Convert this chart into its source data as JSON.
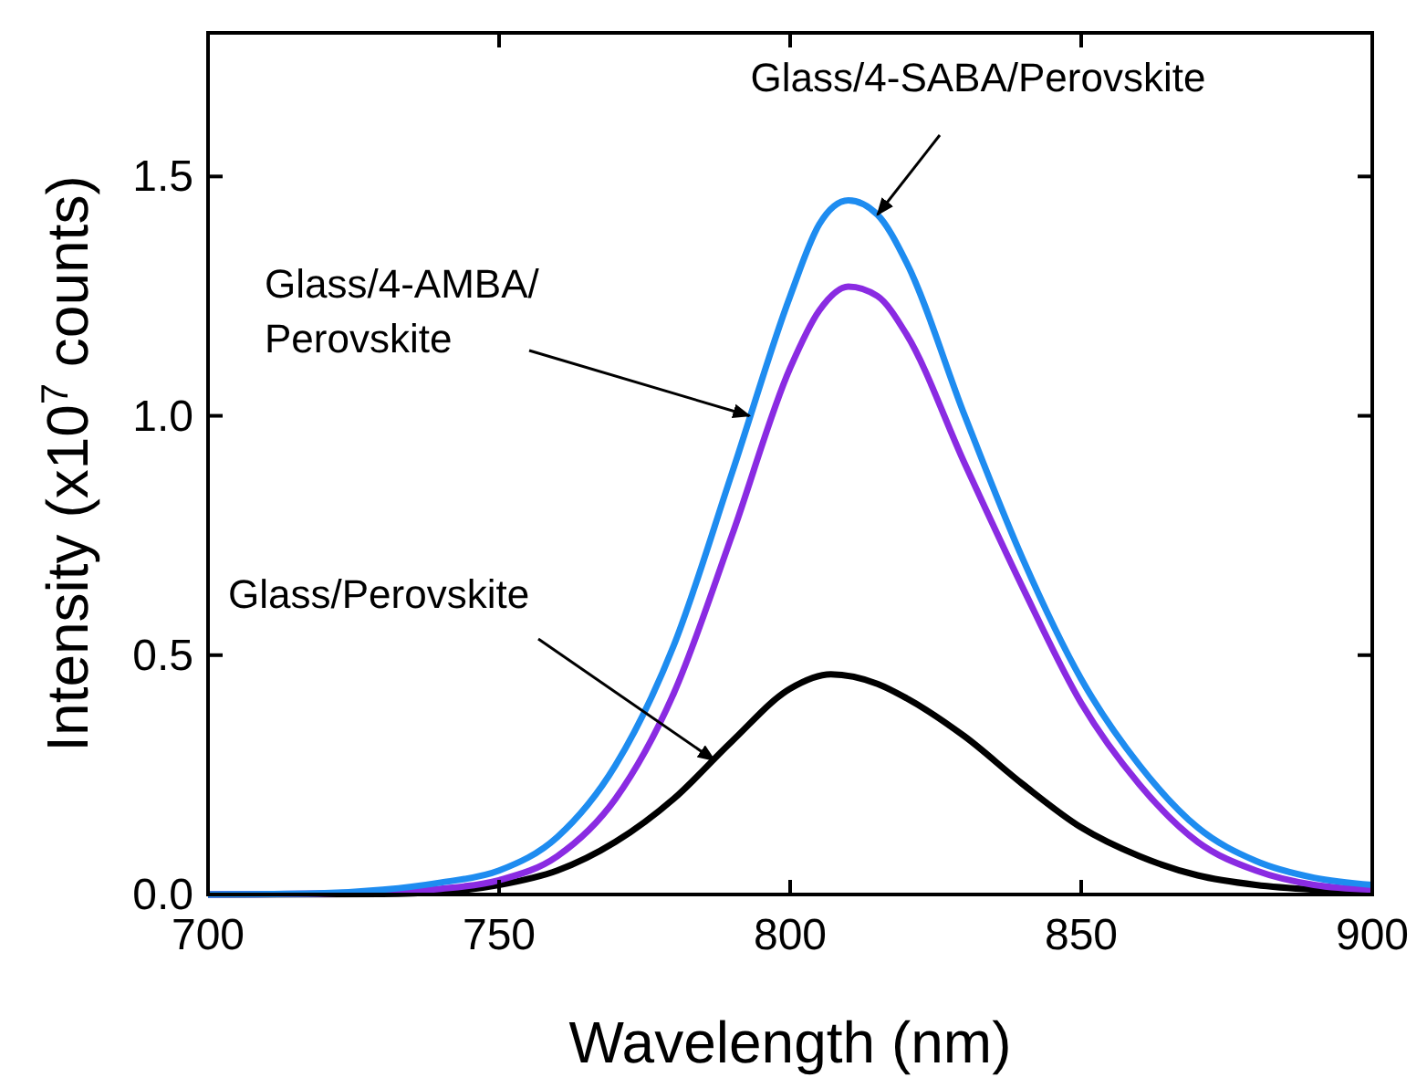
{
  "chart_data": {
    "type": "line",
    "xlabel": "Wavelength (nm)",
    "ylabel": "Intensity (x10$^{7}$ counts)",
    "xlim": [
      700,
      900
    ],
    "ylim": [
      0,
      1.8
    ],
    "xticks": [
      700,
      750,
      800,
      850,
      900
    ],
    "yticks": [
      {
        "value": 0,
        "label": "0.0"
      },
      0.5,
      {
        "value": 1,
        "label": "1.0"
      },
      1.5
    ],
    "grid": false,
    "marker": "none",
    "line_style": "solid",
    "series": [
      {
        "color": "#000000",
        "x": [
          700,
          730,
          740,
          750,
          760,
          770,
          780,
          790,
          800,
          807,
          815,
          820,
          830,
          840,
          850,
          860,
          870,
          880,
          890,
          900
        ],
        "values": [
          0,
          0.001,
          0.005,
          0.02,
          0.05,
          0.11,
          0.2,
          0.32,
          0.43,
          0.46,
          0.44,
          0.41,
          0.33,
          0.23,
          0.14,
          0.08,
          0.04,
          0.02,
          0.01,
          0.005
        ]
      },
      {
        "color": "#8a2be2",
        "x": [
          700,
          730,
          740,
          750,
          760,
          770,
          780,
          790,
          800,
          805,
          810,
          815,
          820,
          830,
          840,
          850,
          860,
          870,
          880,
          890,
          900
        ],
        "values": [
          0,
          0.005,
          0.012,
          0.03,
          0.08,
          0.2,
          0.42,
          0.75,
          1.1,
          1.22,
          1.27,
          1.25,
          1.17,
          0.9,
          0.64,
          0.4,
          0.23,
          0.11,
          0.05,
          0.02,
          0.01
        ]
      },
      {
        "color": "#1e8cf0",
        "x": [
          700,
          720,
          730,
          740,
          750,
          760,
          770,
          780,
          790,
          800,
          805,
          810,
          815,
          820,
          830,
          840,
          850,
          860,
          870,
          880,
          890,
          900
        ],
        "values": [
          0,
          0.003,
          0.01,
          0.025,
          0.05,
          0.12,
          0.27,
          0.52,
          0.88,
          1.25,
          1.4,
          1.45,
          1.42,
          1.32,
          1.0,
          0.7,
          0.45,
          0.27,
          0.14,
          0.07,
          0.035,
          0.02
        ]
      }
    ],
    "annotations": [
      {
        "text": "Glass/4-SABA/Perovskite",
        "x": 815,
        "y": 1.42
      },
      {
        "text": "Glass/4-AMBA/\nPerovskite",
        "x": 793,
        "y": 1.0
      },
      {
        "text": "Glass/Perovskite",
        "x": 787,
        "y": 0.28
      }
    ]
  }
}
